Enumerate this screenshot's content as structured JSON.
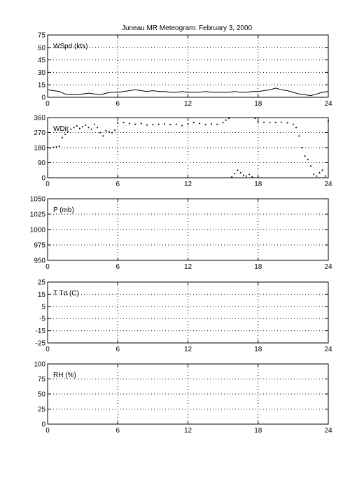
{
  "title": "Juneau MR Meteogram:  February  3, 2000",
  "chart_data": [
    {
      "type": "line",
      "label": "WSpd (kts)",
      "xlim": [
        0,
        24
      ],
      "xticks": [
        0,
        6,
        12,
        18,
        24
      ],
      "ylim": [
        0,
        75
      ],
      "yticks": [
        0,
        15,
        30,
        45,
        60,
        75
      ],
      "grid": true,
      "series": [
        {
          "x": [
            0,
            0.5,
            1,
            1.5,
            2,
            2.5,
            3,
            3.5,
            4,
            4.5,
            5,
            5.5,
            6,
            6.5,
            7,
            7.5,
            8,
            8.5,
            9,
            9.5,
            10,
            10.5,
            11,
            11.5,
            12,
            12.5,
            13,
            13.5,
            14,
            14.5,
            15,
            15.5,
            16,
            16.5,
            17,
            17.5,
            18,
            18.5,
            19,
            19.5,
            20,
            20.5,
            21,
            21.5,
            22,
            22.5,
            23,
            23.5,
            24
          ],
          "values": [
            9,
            8,
            7,
            4,
            3,
            3,
            4,
            5,
            4,
            3,
            5,
            6,
            6,
            7,
            8,
            9,
            8,
            7,
            8,
            7,
            7,
            6,
            6,
            7,
            6,
            6,
            6,
            7,
            6,
            6,
            6,
            6,
            7,
            6,
            6,
            7,
            7,
            8,
            9,
            11,
            9,
            8,
            6,
            4,
            3,
            2,
            4,
            6,
            7
          ]
        }
      ]
    },
    {
      "type": "scatter",
      "label": "WDir",
      "xlim": [
        0,
        24
      ],
      "xticks": [
        0,
        6,
        12,
        18,
        24
      ],
      "ylim": [
        0,
        360
      ],
      "yticks": [
        0,
        90,
        180,
        270,
        360
      ],
      "grid": true,
      "series": [
        {
          "x": [
            0,
            0.25,
            0.5,
            0.75,
            1,
            1.25,
            1.5,
            1.75,
            2,
            2.25,
            2.5,
            2.75,
            3,
            3.25,
            3.5,
            3.75,
            4,
            4.25,
            4.5,
            4.75,
            5,
            5.25,
            5.5,
            5.75,
            6,
            6.5,
            7,
            7.5,
            8,
            8.5,
            9,
            9.5,
            10,
            10.5,
            11,
            11.5,
            12,
            12.5,
            13,
            13.5,
            14,
            14.5,
            15,
            15.25,
            15.5,
            15.75,
            16,
            16.25,
            16.5,
            16.75,
            17,
            17.25,
            17.5,
            17.75,
            18,
            18.5,
            19,
            19.5,
            20,
            20.5,
            21,
            21.25,
            21.5,
            21.75,
            22,
            22.25,
            22.5,
            22.75,
            23,
            23.25,
            23.5,
            23.75,
            24
          ],
          "values": [
            180,
            178,
            182,
            185,
            188,
            240,
            260,
            275,
            290,
            300,
            310,
            295,
            305,
            315,
            300,
            290,
            320,
            300,
            270,
            250,
            280,
            275,
            270,
            285,
            330,
            330,
            325,
            320,
            325,
            315,
            318,
            320,
            322,
            318,
            320,
            312,
            322,
            330,
            325,
            318,
            322,
            320,
            330,
            345,
            355,
            5,
            25,
            45,
            30,
            15,
            10,
            20,
            5,
            355,
            335,
            332,
            330,
            330,
            332,
            328,
            320,
            300,
            250,
            180,
            130,
            110,
            70,
            20,
            10,
            30,
            45,
            10,
            340
          ]
        }
      ]
    },
    {
      "type": "line",
      "label": "P (mb)",
      "xlim": [
        0,
        24
      ],
      "xticks": [
        0,
        6,
        12,
        18,
        24
      ],
      "ylim": [
        950,
        1050
      ],
      "yticks": [
        950,
        975,
        1000,
        1025,
        1050
      ],
      "grid": true,
      "series": []
    },
    {
      "type": "line",
      "label": "T Td (C)",
      "xlim": [
        0,
        24
      ],
      "xticks": [
        0,
        6,
        12,
        18,
        24
      ],
      "ylim": [
        -25,
        25
      ],
      "yticks": [
        -25,
        -15,
        -5,
        5,
        15,
        25
      ],
      "grid": true,
      "series": []
    },
    {
      "type": "line",
      "label": "RH (%)",
      "xlim": [
        0,
        24
      ],
      "xticks": [
        0,
        6,
        12,
        18,
        24
      ],
      "ylim": [
        0,
        100
      ],
      "yticks": [
        0,
        25,
        50,
        75,
        100
      ],
      "grid": true,
      "series": []
    }
  ]
}
